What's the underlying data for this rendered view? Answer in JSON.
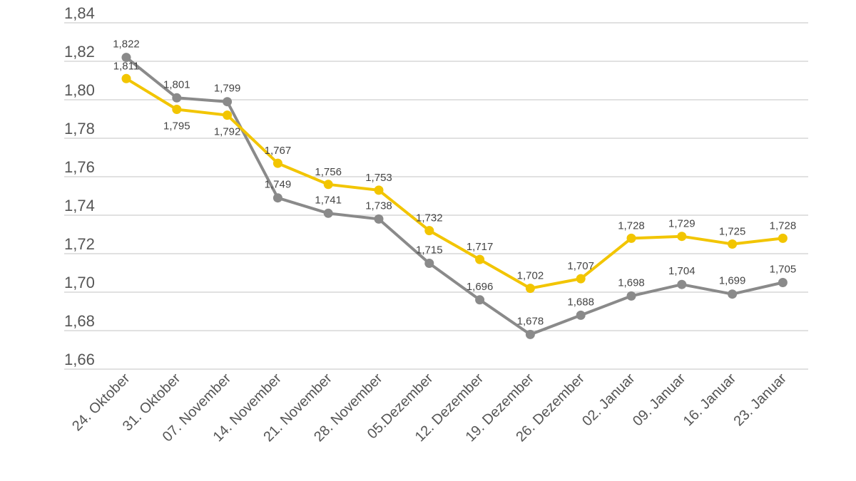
{
  "chart_data": {
    "type": "line",
    "title": "",
    "xlabel": "",
    "ylabel": "",
    "ylim": [
      1.66,
      1.84
    ],
    "yticks": [
      "1,66",
      "1,68",
      "1,70",
      "1,72",
      "1,74",
      "1,76",
      "1,78",
      "1,80",
      "1,82",
      "1,84"
    ],
    "categories": [
      "24. Oktober",
      "31. Oktober",
      "07. November",
      "14. November",
      "21. November",
      "28. November",
      "05.Dezember",
      "12. Dezember",
      "19. Dezember",
      "26. Dezember",
      "02. Januar",
      "09. Januar",
      "16. Januar",
      "23. Januar"
    ],
    "grid": true,
    "legend": "none",
    "series": [
      {
        "name": "gray-series",
        "color": "#8a8a8a",
        "values": [
          1.822,
          1.801,
          1.799,
          1.749,
          1.741,
          1.738,
          1.715,
          1.696,
          1.678,
          1.688,
          1.698,
          1.704,
          1.699,
          1.705
        ],
        "labels": [
          "1,822",
          "1,801",
          "1,799",
          "1,749",
          "1,741",
          "1,738",
          "1,715",
          "1,696",
          "1,678",
          "1,688",
          "1,698",
          "1,704",
          "1,699",
          "1,705"
        ]
      },
      {
        "name": "yellow-series",
        "color": "#f2c500",
        "values": [
          1.811,
          1.795,
          1.792,
          1.767,
          1.756,
          1.753,
          1.732,
          1.717,
          1.702,
          1.707,
          1.728,
          1.729,
          1.725,
          1.728
        ],
        "labels": [
          "1,811",
          "1,795",
          "1,792",
          "1,767",
          "1,756",
          "1,753",
          "1,732",
          "1,717",
          "1,702",
          "1,707",
          "1,728",
          "1,729",
          "1,725",
          "1,728"
        ]
      }
    ]
  }
}
